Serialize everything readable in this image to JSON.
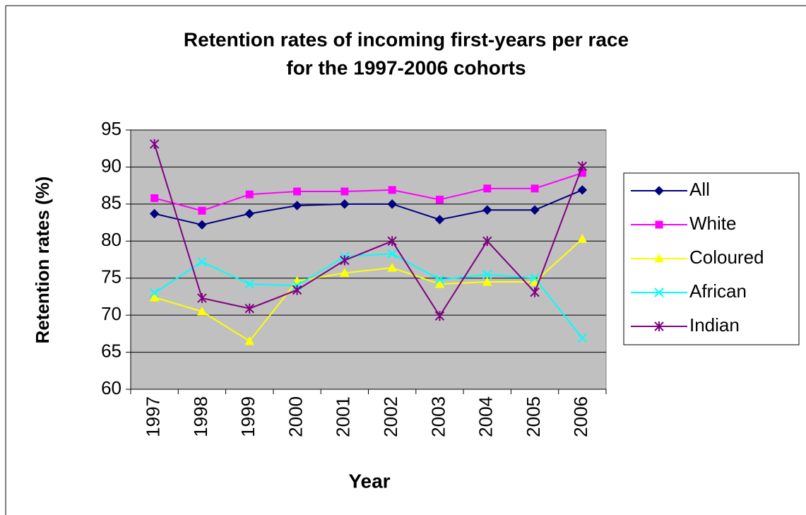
{
  "chart_data": {
    "type": "line",
    "title": [
      "Retention rates of incoming first-years per race",
      "for the 1997-2006 cohorts"
    ],
    "x_label": "Year",
    "y_label": "Retention rates (%)",
    "categories": [
      "1997",
      "1998",
      "1999",
      "2000",
      "2001",
      "2002",
      "2003",
      "2004",
      "2005",
      "2006"
    ],
    "series": [
      {
        "name": "All",
        "color": "#000080",
        "marker": "diamond",
        "values": [
          83.7,
          82.2,
          83.7,
          84.8,
          85.0,
          85.0,
          82.9,
          84.2,
          84.2,
          86.9
        ]
      },
      {
        "name": "White",
        "color": "#ff00ff",
        "marker": "square",
        "values": [
          85.8,
          84.1,
          86.3,
          86.7,
          86.7,
          86.9,
          85.6,
          87.1,
          87.1,
          89.2
        ]
      },
      {
        "name": "Coloured",
        "color": "#ffff00",
        "marker": "triangle",
        "values": [
          72.4,
          70.5,
          66.5,
          74.6,
          75.7,
          76.4,
          74.2,
          74.5,
          74.5,
          80.3
        ]
      },
      {
        "name": "African",
        "color": "#00ffff",
        "marker": "x",
        "values": [
          73.0,
          77.2,
          74.2,
          74.0,
          77.9,
          78.3,
          74.8,
          75.5,
          75.0,
          66.9
        ]
      },
      {
        "name": "Indian",
        "color": "#800080",
        "marker": "star",
        "values": [
          93.1,
          72.3,
          70.9,
          73.4,
          77.4,
          80.0,
          69.9,
          80.0,
          73.1,
          90.1
        ]
      }
    ],
    "ylim": [
      60,
      95
    ],
    "yticks": [
      60,
      65,
      70,
      75,
      80,
      85,
      90,
      95
    ],
    "grid": true,
    "legend": "right",
    "plot_background": "#c0c0c0"
  }
}
